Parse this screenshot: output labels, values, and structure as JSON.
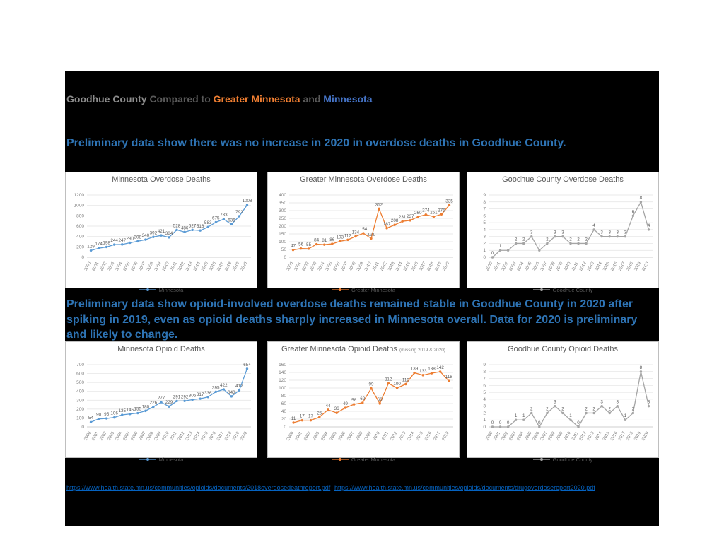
{
  "header": {
    "title_parts": [
      {
        "text": "Goodhue County ",
        "color": "#8c8c8c"
      },
      {
        "text": "Compared to ",
        "color": "#595959"
      },
      {
        "text": "Greater Minnesota ",
        "color": "#ED7D31"
      },
      {
        "text": "and ",
        "color": "#595959"
      },
      {
        "text": "Minnesota",
        "color": "#4472C4"
      }
    ]
  },
  "sections": [
    {
      "headline": "Preliminary data show there was no increase in 2020 in overdose deaths in Goodhue County."
    },
    {
      "headline": "Preliminary data show opioid-involved overdose deaths remained stable in Goodhue County in 2020 after spiking in 2019, even as opioid deaths sharply increased in Minnesota overall.  Data for 2020 is preliminary and likely to change."
    }
  ],
  "links": [
    {
      "text": "https://www.health.state.mn.us/communities/opioids/documents/2018overdosedeathreport.pdf",
      "href": "https://www.health.state.mn.us/communities/opioids/documents/2018overdosedeathreport.pdf"
    },
    {
      "text": "https://www.health.state.mn.us/communities/opioids/documents/drugoverdosereport2020.pdf",
      "href": "https://www.health.state.mn.us/communities/opioids/documents/drugoverdosereport2020.pdf"
    }
  ],
  "chart_data": [
    {
      "type": "line",
      "title": "Minnesota Overdose Deaths",
      "title_suffix": "",
      "row": 0,
      "categories": [
        "2000",
        "2001",
        "2002",
        "2003",
        "2004",
        "2005",
        "2006",
        "2007",
        "2008",
        "2009",
        "2010",
        "2011",
        "2012",
        "2013",
        "2014",
        "2015",
        "2016",
        "2017",
        "2018",
        "2019",
        "2020"
      ],
      "series": [
        {
          "name": "Minnesota",
          "color": "#5B9BD5",
          "values": [
            129,
            174,
            198,
            244,
            247,
            280,
            308,
            340,
            392,
            421,
            384,
            528,
            486,
            527,
            516,
            583,
            675,
            733,
            636,
            792,
            1008
          ]
        }
      ],
      "ylim": [
        0,
        1200
      ],
      "ystep": 200,
      "grid": true,
      "legend_position": "bottom"
    },
    {
      "type": "line",
      "title": "Greater Minnesota Overdose Deaths",
      "title_suffix": "",
      "row": 0,
      "categories": [
        "2000",
        "2001",
        "2002",
        "2003",
        "2004",
        "2005",
        "2006",
        "2007",
        "2008",
        "2009",
        "2010",
        "2011",
        "2012",
        "2013",
        "2014",
        "2015",
        "2016",
        "2017",
        "2018",
        "2019",
        "2020"
      ],
      "series": [
        {
          "name": "Greater Minnesota",
          "color": "#ED7D31",
          "values": [
            47,
            56,
            55,
            84,
            81,
            86,
            103,
            112,
            134,
            154,
            121,
            312,
            187,
            208,
            231,
            237,
            260,
            274,
            261,
            276,
            335
          ]
        }
      ],
      "ylim": [
        0,
        400
      ],
      "ystep": 50,
      "grid": true,
      "legend_position": "bottom"
    },
    {
      "type": "line",
      "title": "Goodhue County Overdose Deaths",
      "title_suffix": "",
      "row": 0,
      "categories": [
        "2000",
        "2001",
        "2002",
        "2003",
        "2004",
        "2005",
        "2006",
        "2007",
        "2008",
        "2009",
        "2010",
        "2011",
        "2012",
        "2013",
        "2014",
        "2015",
        "2016",
        "2017",
        "2018",
        "2019",
        "2020"
      ],
      "series": [
        {
          "name": "Goodhue County",
          "color": "#A5A5A5",
          "values": [
            0,
            1,
            1,
            2,
            2,
            3,
            1,
            2,
            3,
            3,
            2,
            2,
            2,
            4,
            3,
            3,
            3,
            3,
            6,
            8,
            4
          ]
        }
      ],
      "ylim": [
        0,
        9
      ],
      "ystep": 1,
      "grid": true,
      "legend_position": "bottom"
    },
    {
      "type": "line",
      "title": "Minnesota Opioid Deaths",
      "title_suffix": "",
      "row": 1,
      "categories": [
        "2000",
        "2001",
        "2002",
        "2003",
        "2004",
        "2005",
        "2006",
        "2007",
        "2008",
        "2009",
        "2010",
        "2011",
        "2012",
        "2013",
        "2014",
        "2015",
        "2016",
        "2017",
        "2018",
        "2019",
        "2020"
      ],
      "series": [
        {
          "name": "Minnesota",
          "color": "#5B9BD5",
          "values": [
            54,
            90,
            95,
            106,
            135,
            145,
            155,
            180,
            226,
            277,
            229,
            291,
            292,
            306,
            317,
            336,
            395,
            422,
            343,
            412,
            654
          ]
        }
      ],
      "ylim": [
        0,
        700
      ],
      "ystep": 100,
      "grid": true,
      "legend_position": "bottom"
    },
    {
      "type": "line",
      "title": "Greater Minnesota Opioid Deaths",
      "title_suffix": "(missing 2019 & 2020)",
      "row": 1,
      "categories": [
        "2000",
        "2001",
        "2002",
        "2003",
        "2004",
        "2005",
        "2006",
        "2007",
        "2008",
        "2009",
        "2010",
        "2011",
        "2012",
        "2013",
        "2014",
        "2015",
        "2016",
        "2017",
        "2018"
      ],
      "series": [
        {
          "name": "Greater Minnesota",
          "color": "#ED7D31",
          "values": [
            11,
            17,
            17,
            25,
            44,
            36,
            49,
            58,
            62,
            99,
            60,
            112,
            100,
            110,
            139,
            133,
            138,
            142,
            118
          ]
        }
      ],
      "ylim": [
        0,
        160
      ],
      "ystep": 20,
      "grid": true,
      "legend_position": "bottom"
    },
    {
      "type": "line",
      "title": "Goodhue County Opioid Deaths",
      "title_suffix": "",
      "row": 1,
      "categories": [
        "2000",
        "2001",
        "2002",
        "2003",
        "2004",
        "2005",
        "2006",
        "2007",
        "2008",
        "2009",
        "2010",
        "2011",
        "2012",
        "2013",
        "2014",
        "2015",
        "2016",
        "2017",
        "2018",
        "2019",
        "2020"
      ],
      "series": [
        {
          "name": "Goodhue County",
          "color": "#A5A5A5",
          "values": [
            0,
            0,
            0,
            1,
            1,
            2,
            0,
            2,
            3,
            2,
            1,
            0,
            2,
            2,
            3,
            2,
            3,
            1,
            2,
            8,
            3
          ]
        }
      ],
      "ylim": [
        0,
        9
      ],
      "ystep": 1,
      "grid": true,
      "legend_position": "bottom"
    }
  ]
}
